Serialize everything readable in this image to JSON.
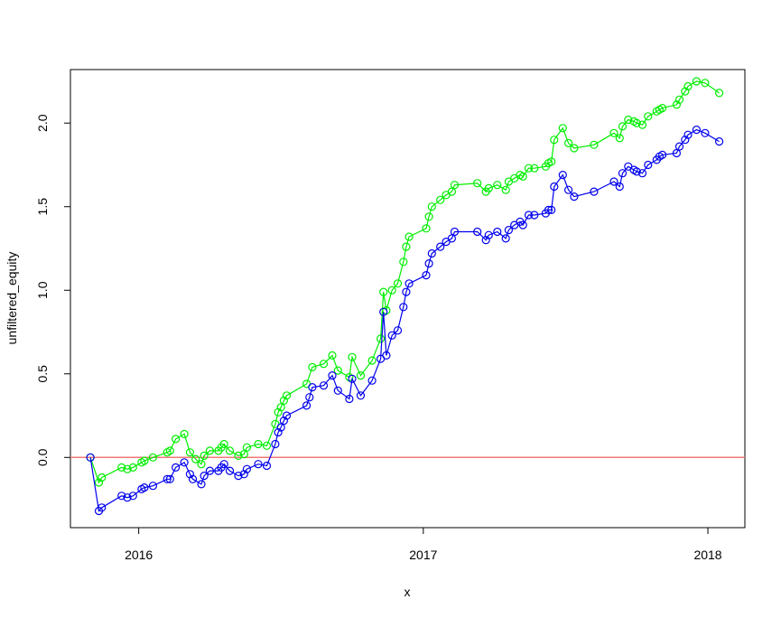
{
  "chart_data": {
    "type": "line",
    "xlabel": "x",
    "ylabel": "unfiltered_equity",
    "xlim": [
      2015.76,
      2018.13
    ],
    "ylim": [
      -0.42,
      2.32
    ],
    "x_ticks": [
      2016,
      2017,
      2018
    ],
    "x_tick_labels": [
      "2016",
      "2017",
      "2018"
    ],
    "y_ticks": [
      0.0,
      0.5,
      1.0,
      1.5,
      2.0
    ],
    "y_tick_labels": [
      "0.0",
      "0.5",
      "1.0",
      "1.5",
      "2.0"
    ],
    "grid": false,
    "reference_line": {
      "y": 0.0,
      "color": "#f27777"
    },
    "series": [
      {
        "color": "#00ee00",
        "points": [
          [
            2015.83,
            0.0
          ],
          [
            2015.86,
            -0.15
          ],
          [
            2015.87,
            -0.12
          ],
          [
            2015.94,
            -0.06
          ],
          [
            2015.96,
            -0.07
          ],
          [
            2015.98,
            -0.06
          ],
          [
            2016.01,
            -0.03
          ],
          [
            2016.02,
            -0.02
          ],
          [
            2016.05,
            0.0
          ],
          [
            2016.1,
            0.03
          ],
          [
            2016.11,
            0.04
          ],
          [
            2016.13,
            0.11
          ],
          [
            2016.16,
            0.14
          ],
          [
            2016.18,
            0.03
          ],
          [
            2016.2,
            -0.01
          ],
          [
            2016.22,
            -0.04
          ],
          [
            2016.23,
            0.01
          ],
          [
            2016.25,
            0.04
          ],
          [
            2016.28,
            0.04
          ],
          [
            2016.29,
            0.06
          ],
          [
            2016.3,
            0.08
          ],
          [
            2016.32,
            0.04
          ],
          [
            2016.35,
            0.01
          ],
          [
            2016.37,
            0.02
          ],
          [
            2016.38,
            0.06
          ],
          [
            2016.42,
            0.08
          ],
          [
            2016.45,
            0.07
          ],
          [
            2016.48,
            0.2
          ],
          [
            2016.49,
            0.27
          ],
          [
            2016.5,
            0.3
          ],
          [
            2016.51,
            0.34
          ],
          [
            2016.52,
            0.37
          ],
          [
            2016.59,
            0.44
          ],
          [
            2016.61,
            0.54
          ],
          [
            2016.65,
            0.56
          ],
          [
            2016.68,
            0.61
          ],
          [
            2016.7,
            0.52
          ],
          [
            2016.74,
            0.48
          ],
          [
            2016.75,
            0.6
          ],
          [
            2016.78,
            0.49
          ],
          [
            2016.82,
            0.58
          ],
          [
            2016.85,
            0.71
          ],
          [
            2016.86,
            0.99
          ],
          [
            2016.87,
            0.88
          ],
          [
            2016.89,
            1.0
          ],
          [
            2016.91,
            1.04
          ],
          [
            2016.93,
            1.17
          ],
          [
            2016.94,
            1.26
          ],
          [
            2016.95,
            1.32
          ],
          [
            2017.01,
            1.37
          ],
          [
            2017.02,
            1.44
          ],
          [
            2017.03,
            1.5
          ],
          [
            2017.06,
            1.54
          ],
          [
            2017.08,
            1.57
          ],
          [
            2017.1,
            1.59
          ],
          [
            2017.11,
            1.63
          ],
          [
            2017.19,
            1.64
          ],
          [
            2017.22,
            1.59
          ],
          [
            2017.23,
            1.61
          ],
          [
            2017.26,
            1.63
          ],
          [
            2017.29,
            1.6
          ],
          [
            2017.3,
            1.65
          ],
          [
            2017.32,
            1.67
          ],
          [
            2017.34,
            1.69
          ],
          [
            2017.35,
            1.68
          ],
          [
            2017.37,
            1.73
          ],
          [
            2017.39,
            1.73
          ],
          [
            2017.43,
            1.74
          ],
          [
            2017.44,
            1.76
          ],
          [
            2017.45,
            1.77
          ],
          [
            2017.46,
            1.9
          ],
          [
            2017.49,
            1.97
          ],
          [
            2017.51,
            1.88
          ],
          [
            2017.53,
            1.85
          ],
          [
            2017.6,
            1.87
          ],
          [
            2017.67,
            1.94
          ],
          [
            2017.69,
            1.91
          ],
          [
            2017.7,
            1.98
          ],
          [
            2017.72,
            2.02
          ],
          [
            2017.74,
            2.01
          ],
          [
            2017.75,
            2.0
          ],
          [
            2017.77,
            1.99
          ],
          [
            2017.79,
            2.04
          ],
          [
            2017.82,
            2.07
          ],
          [
            2017.83,
            2.08
          ],
          [
            2017.84,
            2.09
          ],
          [
            2017.89,
            2.11
          ],
          [
            2017.9,
            2.14
          ],
          [
            2017.92,
            2.19
          ],
          [
            2017.93,
            2.22
          ],
          [
            2017.96,
            2.25
          ],
          [
            2017.99,
            2.24
          ],
          [
            2018.04,
            2.18
          ]
        ]
      },
      {
        "color": "#0000ee",
        "points": [
          [
            2015.83,
            0.0
          ],
          [
            2015.86,
            -0.32
          ],
          [
            2015.87,
            -0.3
          ],
          [
            2015.94,
            -0.23
          ],
          [
            2015.96,
            -0.24
          ],
          [
            2015.98,
            -0.23
          ],
          [
            2016.01,
            -0.19
          ],
          [
            2016.02,
            -0.18
          ],
          [
            2016.05,
            -0.17
          ],
          [
            2016.1,
            -0.13
          ],
          [
            2016.11,
            -0.13
          ],
          [
            2016.13,
            -0.06
          ],
          [
            2016.16,
            -0.03
          ],
          [
            2016.18,
            -0.1
          ],
          [
            2016.19,
            -0.13
          ],
          [
            2016.22,
            -0.16
          ],
          [
            2016.23,
            -0.11
          ],
          [
            2016.25,
            -0.08
          ],
          [
            2016.28,
            -0.08
          ],
          [
            2016.29,
            -0.06
          ],
          [
            2016.3,
            -0.04
          ],
          [
            2016.32,
            -0.08
          ],
          [
            2016.35,
            -0.11
          ],
          [
            2016.37,
            -0.1
          ],
          [
            2016.38,
            -0.07
          ],
          [
            2016.42,
            -0.04
          ],
          [
            2016.45,
            -0.05
          ],
          [
            2016.48,
            0.08
          ],
          [
            2016.49,
            0.15
          ],
          [
            2016.5,
            0.18
          ],
          [
            2016.51,
            0.22
          ],
          [
            2016.52,
            0.25
          ],
          [
            2016.59,
            0.31
          ],
          [
            2016.6,
            0.36
          ],
          [
            2016.61,
            0.42
          ],
          [
            2016.65,
            0.43
          ],
          [
            2016.68,
            0.49
          ],
          [
            2016.7,
            0.4
          ],
          [
            2016.74,
            0.35
          ],
          [
            2016.75,
            0.47
          ],
          [
            2016.78,
            0.37
          ],
          [
            2016.82,
            0.46
          ],
          [
            2016.85,
            0.59
          ],
          [
            2016.86,
            0.87
          ],
          [
            2016.87,
            0.61
          ],
          [
            2016.89,
            0.73
          ],
          [
            2016.91,
            0.76
          ],
          [
            2016.93,
            0.9
          ],
          [
            2016.94,
            0.99
          ],
          [
            2016.95,
            1.04
          ],
          [
            2017.01,
            1.09
          ],
          [
            2017.02,
            1.16
          ],
          [
            2017.03,
            1.22
          ],
          [
            2017.06,
            1.26
          ],
          [
            2017.08,
            1.29
          ],
          [
            2017.1,
            1.31
          ],
          [
            2017.11,
            1.35
          ],
          [
            2017.19,
            1.35
          ],
          [
            2017.22,
            1.3
          ],
          [
            2017.23,
            1.33
          ],
          [
            2017.26,
            1.35
          ],
          [
            2017.29,
            1.31
          ],
          [
            2017.3,
            1.36
          ],
          [
            2017.32,
            1.39
          ],
          [
            2017.34,
            1.41
          ],
          [
            2017.35,
            1.39
          ],
          [
            2017.37,
            1.45
          ],
          [
            2017.39,
            1.45
          ],
          [
            2017.43,
            1.46
          ],
          [
            2017.44,
            1.48
          ],
          [
            2017.45,
            1.48
          ],
          [
            2017.46,
            1.62
          ],
          [
            2017.49,
            1.69
          ],
          [
            2017.51,
            1.6
          ],
          [
            2017.53,
            1.56
          ],
          [
            2017.6,
            1.59
          ],
          [
            2017.67,
            1.65
          ],
          [
            2017.69,
            1.62
          ],
          [
            2017.7,
            1.7
          ],
          [
            2017.72,
            1.74
          ],
          [
            2017.74,
            1.72
          ],
          [
            2017.75,
            1.71
          ],
          [
            2017.77,
            1.7
          ],
          [
            2017.79,
            1.75
          ],
          [
            2017.82,
            1.78
          ],
          [
            2017.83,
            1.8
          ],
          [
            2017.84,
            1.81
          ],
          [
            2017.89,
            1.82
          ],
          [
            2017.9,
            1.86
          ],
          [
            2017.92,
            1.9
          ],
          [
            2017.93,
            1.93
          ],
          [
            2017.96,
            1.96
          ],
          [
            2017.99,
            1.94
          ],
          [
            2018.04,
            1.89
          ]
        ]
      }
    ]
  }
}
